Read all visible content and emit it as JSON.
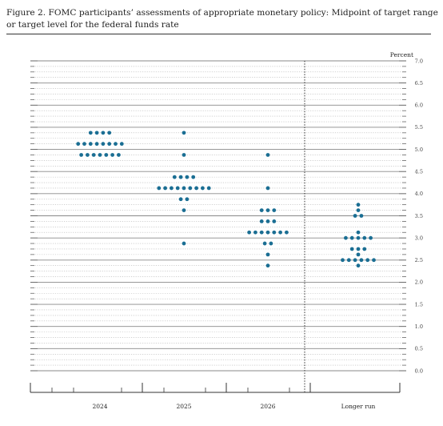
{
  "figure": {
    "title_line1": "Figure 2.  FOMC participants’ assessments of appropriate monetary policy:  Midpoint of target range",
    "title_line2": "or target level for the federal funds rate"
  },
  "chart_data": {
    "type": "scatter",
    "ylabel": "Percent",
    "ylim": [
      0,
      7
    ],
    "ytick_step": 0.125,
    "ytick_labels": [
      "0.0",
      "0.5",
      "1.0",
      "1.5",
      "2.0",
      "2.5",
      "3.0",
      "3.5",
      "4.0",
      "4.5",
      "5.0",
      "5.5",
      "6.0",
      "6.5",
      "7.0"
    ],
    "grid": true,
    "dot_color": "#1a6e93",
    "categories": [
      "2024",
      "2025",
      "2026",
      "Longer run"
    ],
    "dots": [
      {
        "category": "2024",
        "rates": [
          {
            "value": 5.375,
            "count": 4
          },
          {
            "value": 5.125,
            "count": 8
          },
          {
            "value": 4.875,
            "count": 7
          }
        ]
      },
      {
        "category": "2025",
        "rates": [
          {
            "value": 5.375,
            "count": 1
          },
          {
            "value": 4.875,
            "count": 1
          },
          {
            "value": 4.375,
            "count": 4
          },
          {
            "value": 4.125,
            "count": 9
          },
          {
            "value": 3.875,
            "count": 2
          },
          {
            "value": 3.625,
            "count": 1
          },
          {
            "value": 2.875,
            "count": 1
          }
        ]
      },
      {
        "category": "2026",
        "rates": [
          {
            "value": 4.875,
            "count": 1
          },
          {
            "value": 4.125,
            "count": 1
          },
          {
            "value": 3.625,
            "count": 3
          },
          {
            "value": 3.375,
            "count": 3
          },
          {
            "value": 3.125,
            "count": 7
          },
          {
            "value": 2.875,
            "count": 2
          },
          {
            "value": 2.625,
            "count": 1
          },
          {
            "value": 2.375,
            "count": 1
          }
        ]
      },
      {
        "category": "Longer run",
        "rates": [
          {
            "value": 3.75,
            "count": 1
          },
          {
            "value": 3.625,
            "count": 1
          },
          {
            "value": 3.5,
            "count": 2
          },
          {
            "value": 3.125,
            "count": 1
          },
          {
            "value": 3.0,
            "count": 5
          },
          {
            "value": 2.75,
            "count": 3
          },
          {
            "value": 2.625,
            "count": 1
          },
          {
            "value": 2.5,
            "count": 6
          },
          {
            "value": 2.375,
            "count": 1
          }
        ]
      }
    ]
  }
}
